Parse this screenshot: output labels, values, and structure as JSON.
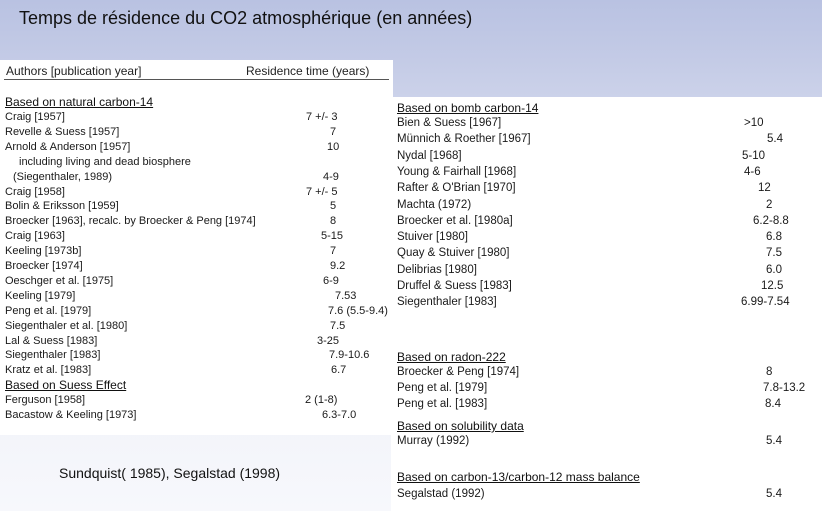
{
  "title": "Temps de résidence du CO2 atmosphérique (en années)",
  "caption": "Sundquist( 1985), Segalstad (1998)",
  "headers": {
    "author": "Authors [publication year]",
    "time": "Residence time (years)"
  },
  "left_sections": [
    {
      "title": "Based on natural carbon-14",
      "rows": [
        {
          "author": "Craig [1957]",
          "value": "7 +/- 3"
        },
        {
          "author": "Revelle & Suess [1957]",
          "value": "7"
        },
        {
          "author": "Arnold & Anderson [1957]",
          "value": "10"
        },
        {
          "author": "including living and dead biosphere",
          "value": ""
        },
        {
          "author": "(Siegenthaler, 1989)",
          "value": "4-9"
        },
        {
          "author": "Craig [1958]",
          "value": "7 +/- 5"
        },
        {
          "author": "Bolin & Eriksson [1959]",
          "value": "5"
        },
        {
          "author": "Broecker [1963], recalc. by Broecker & Peng [1974]",
          "value": "8"
        },
        {
          "author": "Craig [1963]",
          "value": "5-15"
        },
        {
          "author": "Keeling [1973b]",
          "value": "7"
        },
        {
          "author": "Broecker [1974]",
          "value": "9.2"
        },
        {
          "author": "Oeschger et al. [1975]",
          "value": "6-9"
        },
        {
          "author": "Keeling [1979]",
          "value": "7.53"
        },
        {
          "author": "Peng et al. [1979]",
          "value": "7.6 (5.5-9.4)"
        },
        {
          "author": "Siegenthaler et al. [1980]",
          "value": "7.5"
        },
        {
          "author": "Lal & Suess [1983]",
          "value": "3-25"
        },
        {
          "author": "Siegenthaler [1983]",
          "value": "7.9-10.6"
        },
        {
          "author": "Kratz et al. [1983]",
          "value": "6.7"
        }
      ]
    },
    {
      "title": "Based on Suess Effect",
      "rows": [
        {
          "author": "Ferguson [1958]",
          "value": "2 (1-8)"
        },
        {
          "author": "Bacastow & Keeling [1973]",
          "value": "6.3-7.0"
        }
      ]
    }
  ],
  "right_sections": [
    {
      "title": "Based on bomb carbon-14",
      "rows": [
        {
          "author": "Bien & Suess [1967]",
          "value": ">10"
        },
        {
          "author": "Münnich & Roether [1967]",
          "value": "5.4"
        },
        {
          "author": "Nydal [1968]",
          "value": "5-10"
        },
        {
          "author": "Young & Fairhall [1968]",
          "value": "4-6"
        },
        {
          "author": "Rafter & O'Brian [1970]",
          "value": "12"
        },
        {
          "author": "Machta (1972)",
          "value": "2"
        },
        {
          "author": "Broecker et al. [1980a]",
          "value": "6.2-8.8"
        },
        {
          "author": "Stuiver [1980]",
          "value": "6.8"
        },
        {
          "author": "Quay & Stuiver [1980]",
          "value": "7.5"
        },
        {
          "author": "Delibrias [1980]",
          "value": "6.0"
        },
        {
          "author": "Druffel & Suess [1983]",
          "value": "12.5"
        },
        {
          "author": "Siegenthaler [1983]",
          "value": "6.99-7.54"
        }
      ]
    },
    {
      "title": "Based on radon-222",
      "rows": [
        {
          "author": "Broecker & Peng [1974]",
          "value": "8"
        },
        {
          "author": "Peng et al. [1979]",
          "value": "7.8-13.2"
        },
        {
          "author": "Peng et al. [1983]",
          "value": "8.4"
        }
      ]
    },
    {
      "title": "Based on solubility data",
      "rows": [
        {
          "author": "Murray (1992)",
          "value": "5.4"
        }
      ]
    },
    {
      "title": "Based on carbon-13/carbon-12 mass balance",
      "rows": [
        {
          "author": "Segalstad (1992)",
          "value": "5.4"
        }
      ]
    }
  ]
}
